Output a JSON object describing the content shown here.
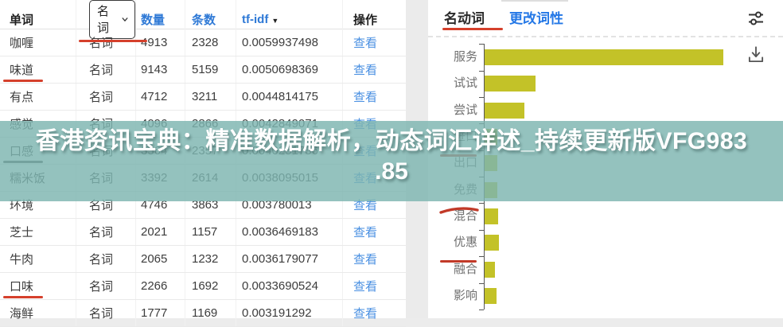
{
  "colors": {
    "accent_red": "#d5402c",
    "header_link_blue": "#2e79d6",
    "view_link_blue": "#4a90e2",
    "tab_link_blue": "#2377e6",
    "bar_yellow": "#c3c228",
    "overlay_teal": "#7db4b0",
    "overlay_text": "#ffffff"
  },
  "table": {
    "header": {
      "word": "单词",
      "pos_selected": "名词",
      "count": "数量",
      "docs": "条数",
      "tfidf": "tf-idf",
      "action": "操作"
    },
    "action_label": "查看",
    "rows": [
      {
        "word": "咖喱",
        "pos": "名词",
        "count": "4913",
        "docs": "2328",
        "tfidf": "0.0059937498",
        "underline": null
      },
      {
        "word": "味道",
        "pos": "名词",
        "count": "9143",
        "docs": "5159",
        "tfidf": "0.0050698369",
        "underline": "red"
      },
      {
        "word": "有点",
        "pos": "名词",
        "count": "4712",
        "docs": "3211",
        "tfidf": "0.0044814175",
        "underline": null
      },
      {
        "word": "感觉",
        "pos": "名词",
        "count": "4096",
        "docs": "2866",
        "tfidf": "0.0042849071",
        "underline": null
      },
      {
        "word": "口感",
        "pos": "名词",
        "count": "3564",
        "docs": "2357",
        "tfidf": "0.0040251736",
        "underline": "dark"
      },
      {
        "word": "糯米饭",
        "pos": "名词",
        "count": "3392",
        "docs": "2614",
        "tfidf": "0.0038095015",
        "underline": null
      },
      {
        "word": "环境",
        "pos": "名词",
        "count": "4746",
        "docs": "3863",
        "tfidf": "0.003780013",
        "underline": null
      },
      {
        "word": "芝士",
        "pos": "名词",
        "count": "2021",
        "docs": "1157",
        "tfidf": "0.0036469183",
        "underline": null
      },
      {
        "word": "牛肉",
        "pos": "名词",
        "count": "2065",
        "docs": "1232",
        "tfidf": "0.0036179077",
        "underline": null
      },
      {
        "word": "口味",
        "pos": "名词",
        "count": "2266",
        "docs": "1692",
        "tfidf": "0.0033690524",
        "underline": "red"
      },
      {
        "word": "海鲜",
        "pos": "名词",
        "count": "1777",
        "docs": "1169",
        "tfidf": "0.003191292",
        "underline": null
      }
    ]
  },
  "panel": {
    "active_tab": "名动词",
    "change_pos_link": "更改词性",
    "tune_icon": "tune-icon",
    "download_icon": "download-icon"
  },
  "overlay": {
    "line1": "香港资讯宝典：精准数据解析，动态词汇详述_持续更新版VFG983",
    "line2": ".85"
  },
  "chart_data": {
    "type": "bar",
    "orientation": "horizontal",
    "title": "",
    "xlabel": "",
    "ylabel": "",
    "categories": [
      "服务",
      "试试",
      "尝试",
      "进口",
      "出口",
      "免费",
      "混合",
      "优惠",
      "融合",
      "影响"
    ],
    "values": [
      300,
      64,
      50,
      16,
      16,
      16,
      17,
      18,
      13,
      15
    ],
    "xlim": [
      0,
      310
    ],
    "value_note": "relative bar lengths; no numeric axis labels shown in chart",
    "grid": false,
    "legend": false,
    "bar_color": "#c3c228",
    "marks": [
      {
        "category": "进口",
        "style": "line"
      },
      {
        "category": "免费",
        "style": "swoosh"
      },
      {
        "category": "优惠",
        "style": "line"
      }
    ]
  }
}
